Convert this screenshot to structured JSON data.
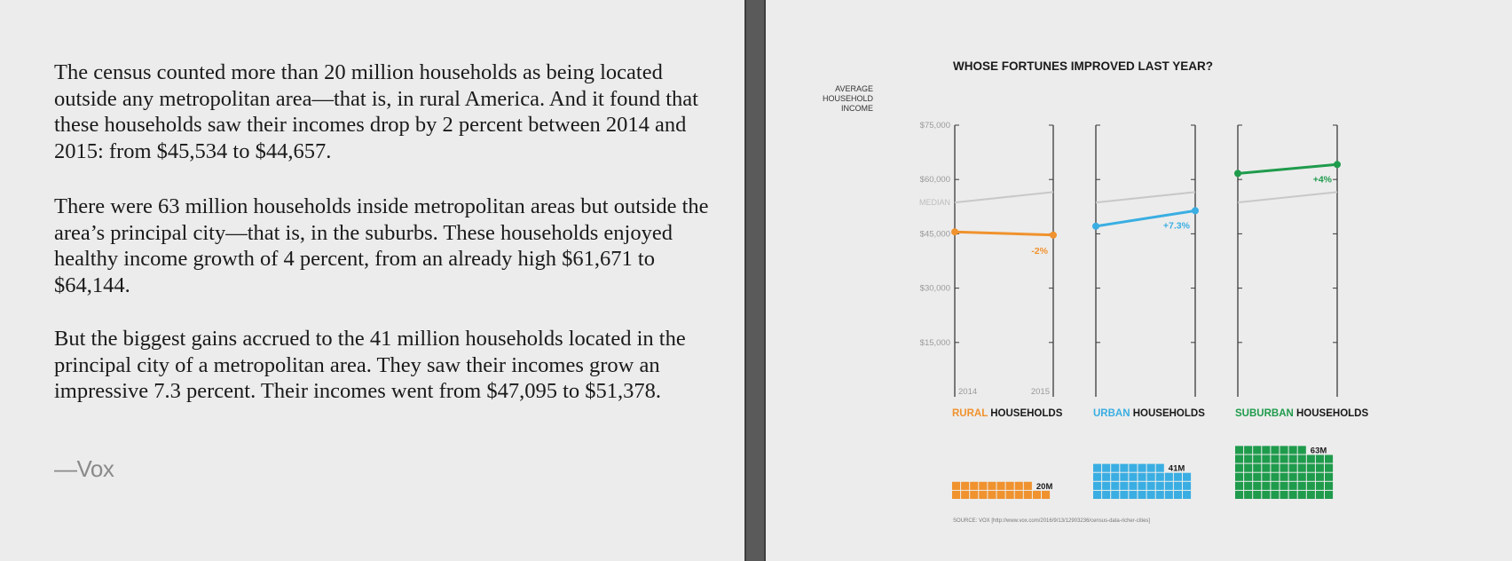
{
  "article": {
    "paragraphs": [
      "The census counted more than 20 million households as being located outside any metropolitan area—that is, in rural America. And it found that these households saw their incomes drop by 2 percent between 2014 and 2015: from $45,534 to $44,657.",
      "There were 63 million households inside metropolitan areas but outside the area’s principal city—that is, in the suburbs. These households enjoyed healthy income growth of 4 percent, from an already high $61,671 to $64,144.",
      "But the biggest gains accrued to the 41 million households located in the principal city of a metropolitan area. They saw their incomes grow an impressive 7.3 percent. Their incomes went from $47,095 to $51,378."
    ],
    "attribution": "—Vox"
  },
  "chart_data": {
    "type": "line",
    "title": "WHOSE FORTUNES IMPROVED LAST YEAR?",
    "ylabel": [
      "AVERAGE",
      "HOUSEHOLD",
      "INCOME"
    ],
    "ylim": [
      0,
      75000
    ],
    "yticks": [
      {
        "value": 75000,
        "label": "$75,000"
      },
      {
        "value": 60000,
        "label": "$60,000"
      },
      {
        "value": 45000,
        "label": "$45,000"
      },
      {
        "value": 30000,
        "label": "$30,000"
      },
      {
        "value": 15000,
        "label": "$15,000"
      }
    ],
    "x_labels": [
      "2014",
      "2015"
    ],
    "median": {
      "label": "MEDIAN",
      "values": [
        53657,
        56516
      ]
    },
    "series": [
      {
        "key": "rural",
        "prefix": "RURAL",
        "suffix": "HOUSEHOLDS",
        "values": [
          45534,
          44657
        ],
        "change": "-2%",
        "color": "#f0922e",
        "households": 20,
        "households_label": "20M"
      },
      {
        "key": "urban",
        "prefix": "URBAN",
        "suffix": "HOUSEHOLDS",
        "values": [
          47095,
          51378
        ],
        "change": "+7.3%",
        "color": "#3aaee2",
        "households": 41,
        "households_label": "41M"
      },
      {
        "key": "suburban",
        "prefix": "SUBURBAN",
        "suffix": "HOUSEHOLDS",
        "values": [
          61671,
          64144
        ],
        "change": "+4%",
        "color": "#1f9b4c",
        "households": 63,
        "households_label": "63M"
      }
    ],
    "source": "SOURCE: VOX [http://www.vox.com/2016/9/13/12903236/census-data-richer-cities]"
  },
  "colors": {
    "axis": "#3a3a3a",
    "median": "#c8c8c8",
    "tick_label": "#9a9a9a",
    "panel_bg": "#ececec"
  }
}
